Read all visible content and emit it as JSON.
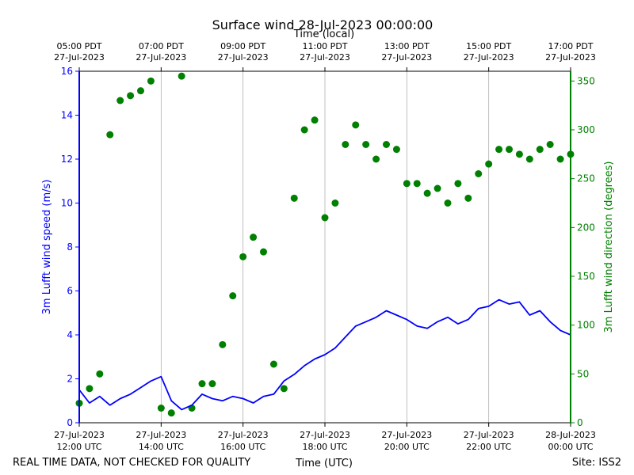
{
  "chart_data": {
    "type": "line",
    "title": "Surface wind 28-Jul-2023 00:00:00",
    "top_axis_label": "Time (local)",
    "xlabel": "Time (UTC)",
    "ylabel_left": "3m Lufft wind speed (m/s)",
    "ylabel_right": "3m Lufft wind direction (degrees)",
    "footer_left": "REAL TIME DATA, NOT CHECKED FOR QUALITY",
    "footer_right": "Site: ISS2",
    "x_range_hours_utc": [
      12,
      24
    ],
    "ylim_left": [
      0,
      16
    ],
    "ylim_right": [
      0,
      360
    ],
    "y_ticks_left": [
      "0",
      "2",
      "4",
      "6",
      "8",
      "10",
      "12",
      "14",
      "16"
    ],
    "y_ticks_right": [
      "0",
      "50",
      "100",
      "150",
      "200",
      "250",
      "300",
      "350"
    ],
    "x_ticks_bottom": [
      {
        "hour": 12,
        "line1": "27-Jul-2023",
        "line2": "12:00 UTC"
      },
      {
        "hour": 14,
        "line1": "27-Jul-2023",
        "line2": "14:00 UTC"
      },
      {
        "hour": 16,
        "line1": "27-Jul-2023",
        "line2": "16:00 UTC"
      },
      {
        "hour": 18,
        "line1": "27-Jul-2023",
        "line2": "18:00 UTC"
      },
      {
        "hour": 20,
        "line1": "27-Jul-2023",
        "line2": "20:00 UTC"
      },
      {
        "hour": 22,
        "line1": "27-Jul-2023",
        "line2": "22:00 UTC"
      },
      {
        "hour": 24,
        "line1": "28-Jul-2023",
        "line2": "00:00 UTC"
      }
    ],
    "x_ticks_top": [
      {
        "hour": 12,
        "line1": "05:00 PDT",
        "line2": "27-Jul-2023"
      },
      {
        "hour": 14,
        "line1": "07:00 PDT",
        "line2": "27-Jul-2023"
      },
      {
        "hour": 16,
        "line1": "09:00 PDT",
        "line2": "27-Jul-2023"
      },
      {
        "hour": 18,
        "line1": "11:00 PDT",
        "line2": "27-Jul-2023"
      },
      {
        "hour": 20,
        "line1": "13:00 PDT",
        "line2": "27-Jul-2023"
      },
      {
        "hour": 22,
        "line1": "15:00 PDT",
        "line2": "27-Jul-2023"
      },
      {
        "hour": 24,
        "line1": "17:00 PDT",
        "line2": "27-Jul-2023"
      }
    ],
    "colors": {
      "speed": "#0000ff",
      "direction": "#008000",
      "grid": "#b0b0b0"
    },
    "series": [
      {
        "name": "3m Lufft wind speed (m/s)",
        "axis": "left",
        "style": "line",
        "x_hours": [
          12.0,
          12.25,
          12.5,
          12.75,
          13.0,
          13.25,
          13.5,
          13.75,
          14.0,
          14.25,
          14.5,
          14.75,
          15.0,
          15.25,
          15.5,
          15.75,
          16.0,
          16.25,
          16.5,
          16.75,
          17.0,
          17.25,
          17.5,
          17.75,
          18.0,
          18.25,
          18.5,
          18.75,
          19.0,
          19.25,
          19.5,
          19.75,
          20.0,
          20.25,
          20.5,
          20.75,
          21.0,
          21.25,
          21.5,
          21.75,
          22.0,
          22.25,
          22.5,
          22.75,
          23.0,
          23.25,
          23.5,
          23.75,
          24.0
        ],
        "values": [
          1.5,
          0.9,
          1.2,
          0.8,
          1.1,
          1.3,
          1.6,
          1.9,
          2.1,
          1.0,
          0.6,
          0.8,
          1.3,
          1.1,
          1.0,
          1.2,
          1.1,
          0.9,
          1.2,
          1.3,
          1.9,
          2.2,
          2.6,
          2.9,
          3.1,
          3.4,
          3.9,
          4.4,
          4.6,
          4.8,
          5.1,
          4.9,
          4.7,
          4.4,
          4.3,
          4.6,
          4.8,
          4.5,
          4.7,
          5.2,
          5.3,
          5.6,
          5.4,
          5.5,
          4.9,
          5.1,
          4.6,
          4.2,
          4.0
        ]
      },
      {
        "name": "3m Lufft wind direction (degrees)",
        "axis": "right",
        "style": "markers",
        "x_hours": [
          12.0,
          12.25,
          12.5,
          12.75,
          13.0,
          13.25,
          13.5,
          13.75,
          14.0,
          14.25,
          14.5,
          14.75,
          15.0,
          15.25,
          15.5,
          15.75,
          16.0,
          16.25,
          16.5,
          16.75,
          17.0,
          17.25,
          17.5,
          17.75,
          18.0,
          18.25,
          18.5,
          18.75,
          19.0,
          19.25,
          19.5,
          19.75,
          20.0,
          20.25,
          20.5,
          20.75,
          21.0,
          21.25,
          21.5,
          21.75,
          22.0,
          22.25,
          22.5,
          22.75,
          23.0,
          23.25,
          23.5,
          23.75,
          24.0
        ],
        "values": [
          20,
          35,
          50,
          295,
          330,
          335,
          340,
          350,
          15,
          10,
          355,
          15,
          40,
          40,
          80,
          130,
          170,
          190,
          175,
          60,
          35,
          230,
          300,
          310,
          210,
          225,
          285,
          305,
          285,
          270,
          285,
          280,
          245,
          245,
          235,
          240,
          225,
          245,
          230,
          255,
          265,
          280,
          280,
          275,
          270,
          280,
          285,
          270,
          275
        ]
      }
    ]
  }
}
